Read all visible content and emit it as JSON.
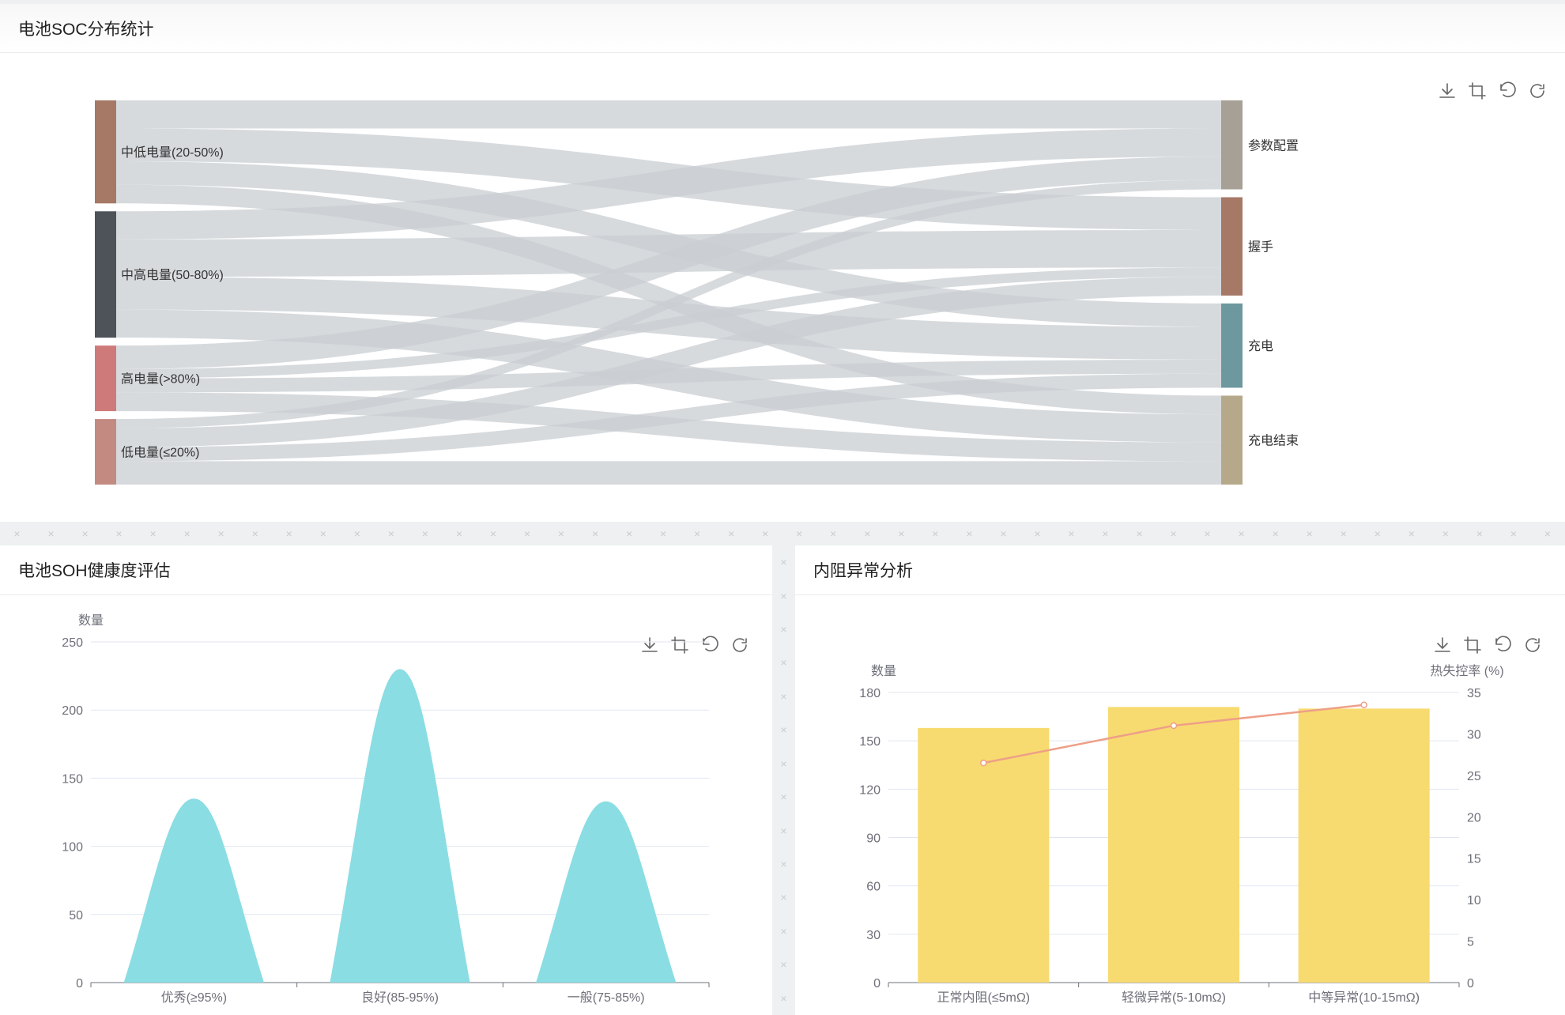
{
  "panels": {
    "soc": {
      "title": "电池SOC分布统计"
    },
    "soh": {
      "title": "电池SOH健康度评估"
    },
    "resistance": {
      "title": "内阻异常分析"
    }
  },
  "toolbar_icons": [
    "download-icon",
    "crop-icon",
    "undo-icon",
    "refresh-icon"
  ],
  "colors": {
    "axis": "#6e7079",
    "grid": "#e0e6f1",
    "link": "#c9cdd1",
    "soh_area": "#8adde3",
    "bar": "#f7db70",
    "line": "#ee9f88"
  },
  "chart_data": [
    {
      "type": "sankey",
      "sources": [
        {
          "name": "中低电量(20-50%)",
          "color": "#a67866"
        },
        {
          "name": "中高电量(50-80%)",
          "color": "#4d5358"
        },
        {
          "name": "高电量(>80%)",
          "color": "#cf7a7a"
        },
        {
          "name": "低电量(≤20%)",
          "color": "#c38a82"
        }
      ],
      "targets": [
        {
          "name": "参数配置",
          "color": "#a6a097"
        },
        {
          "name": "握手",
          "color": "#a67866"
        },
        {
          "name": "充电",
          "color": "#6d98a0"
        },
        {
          "name": "充电结束",
          "color": "#b6a88a"
        }
      ],
      "links": [
        {
          "source": 0,
          "target": 0,
          "value": 30
        },
        {
          "source": 0,
          "target": 1,
          "value": 35
        },
        {
          "source": 0,
          "target": 2,
          "value": 25
        },
        {
          "source": 0,
          "target": 3,
          "value": 20
        },
        {
          "source": 1,
          "target": 0,
          "value": 30
        },
        {
          "source": 1,
          "target": 1,
          "value": 40
        },
        {
          "source": 1,
          "target": 2,
          "value": 35
        },
        {
          "source": 1,
          "target": 3,
          "value": 30
        },
        {
          "source": 2,
          "target": 0,
          "value": 25
        },
        {
          "source": 2,
          "target": 1,
          "value": 10
        },
        {
          "source": 2,
          "target": 2,
          "value": 15
        },
        {
          "source": 2,
          "target": 3,
          "value": 20
        },
        {
          "source": 3,
          "target": 0,
          "value": 10
        },
        {
          "source": 3,
          "target": 1,
          "value": 20
        },
        {
          "source": 3,
          "target": 2,
          "value": 15
        },
        {
          "source": 3,
          "target": 3,
          "value": 25
        }
      ]
    },
    {
      "type": "area",
      "ylabel": "数量",
      "categories": [
        "优秀(≥95%)",
        "良好(85-95%)",
        "一般(75-85%)"
      ],
      "values": [
        135,
        230,
        133
      ],
      "ylim": [
        0,
        250
      ],
      "yticks": [
        0,
        50,
        100,
        150,
        200,
        250
      ],
      "grid": true
    },
    {
      "type": "bar-line",
      "categories": [
        "正常内阻(≤5mΩ)",
        "轻微异常(5-10mΩ)",
        "中等异常(10-15mΩ)"
      ],
      "bar": {
        "ylabel": "数量",
        "values": [
          158,
          171,
          170
        ],
        "ylim": [
          0,
          180
        ],
        "yticks": [
          0,
          30,
          60,
          90,
          120,
          150,
          180
        ]
      },
      "line": {
        "ylabel": "热失控率 (%)",
        "values": [
          26.5,
          31,
          33.5
        ],
        "ylim": [
          0,
          35
        ],
        "yticks": [
          0,
          5,
          10,
          15,
          20,
          25,
          30,
          35
        ]
      },
      "grid": true
    }
  ]
}
